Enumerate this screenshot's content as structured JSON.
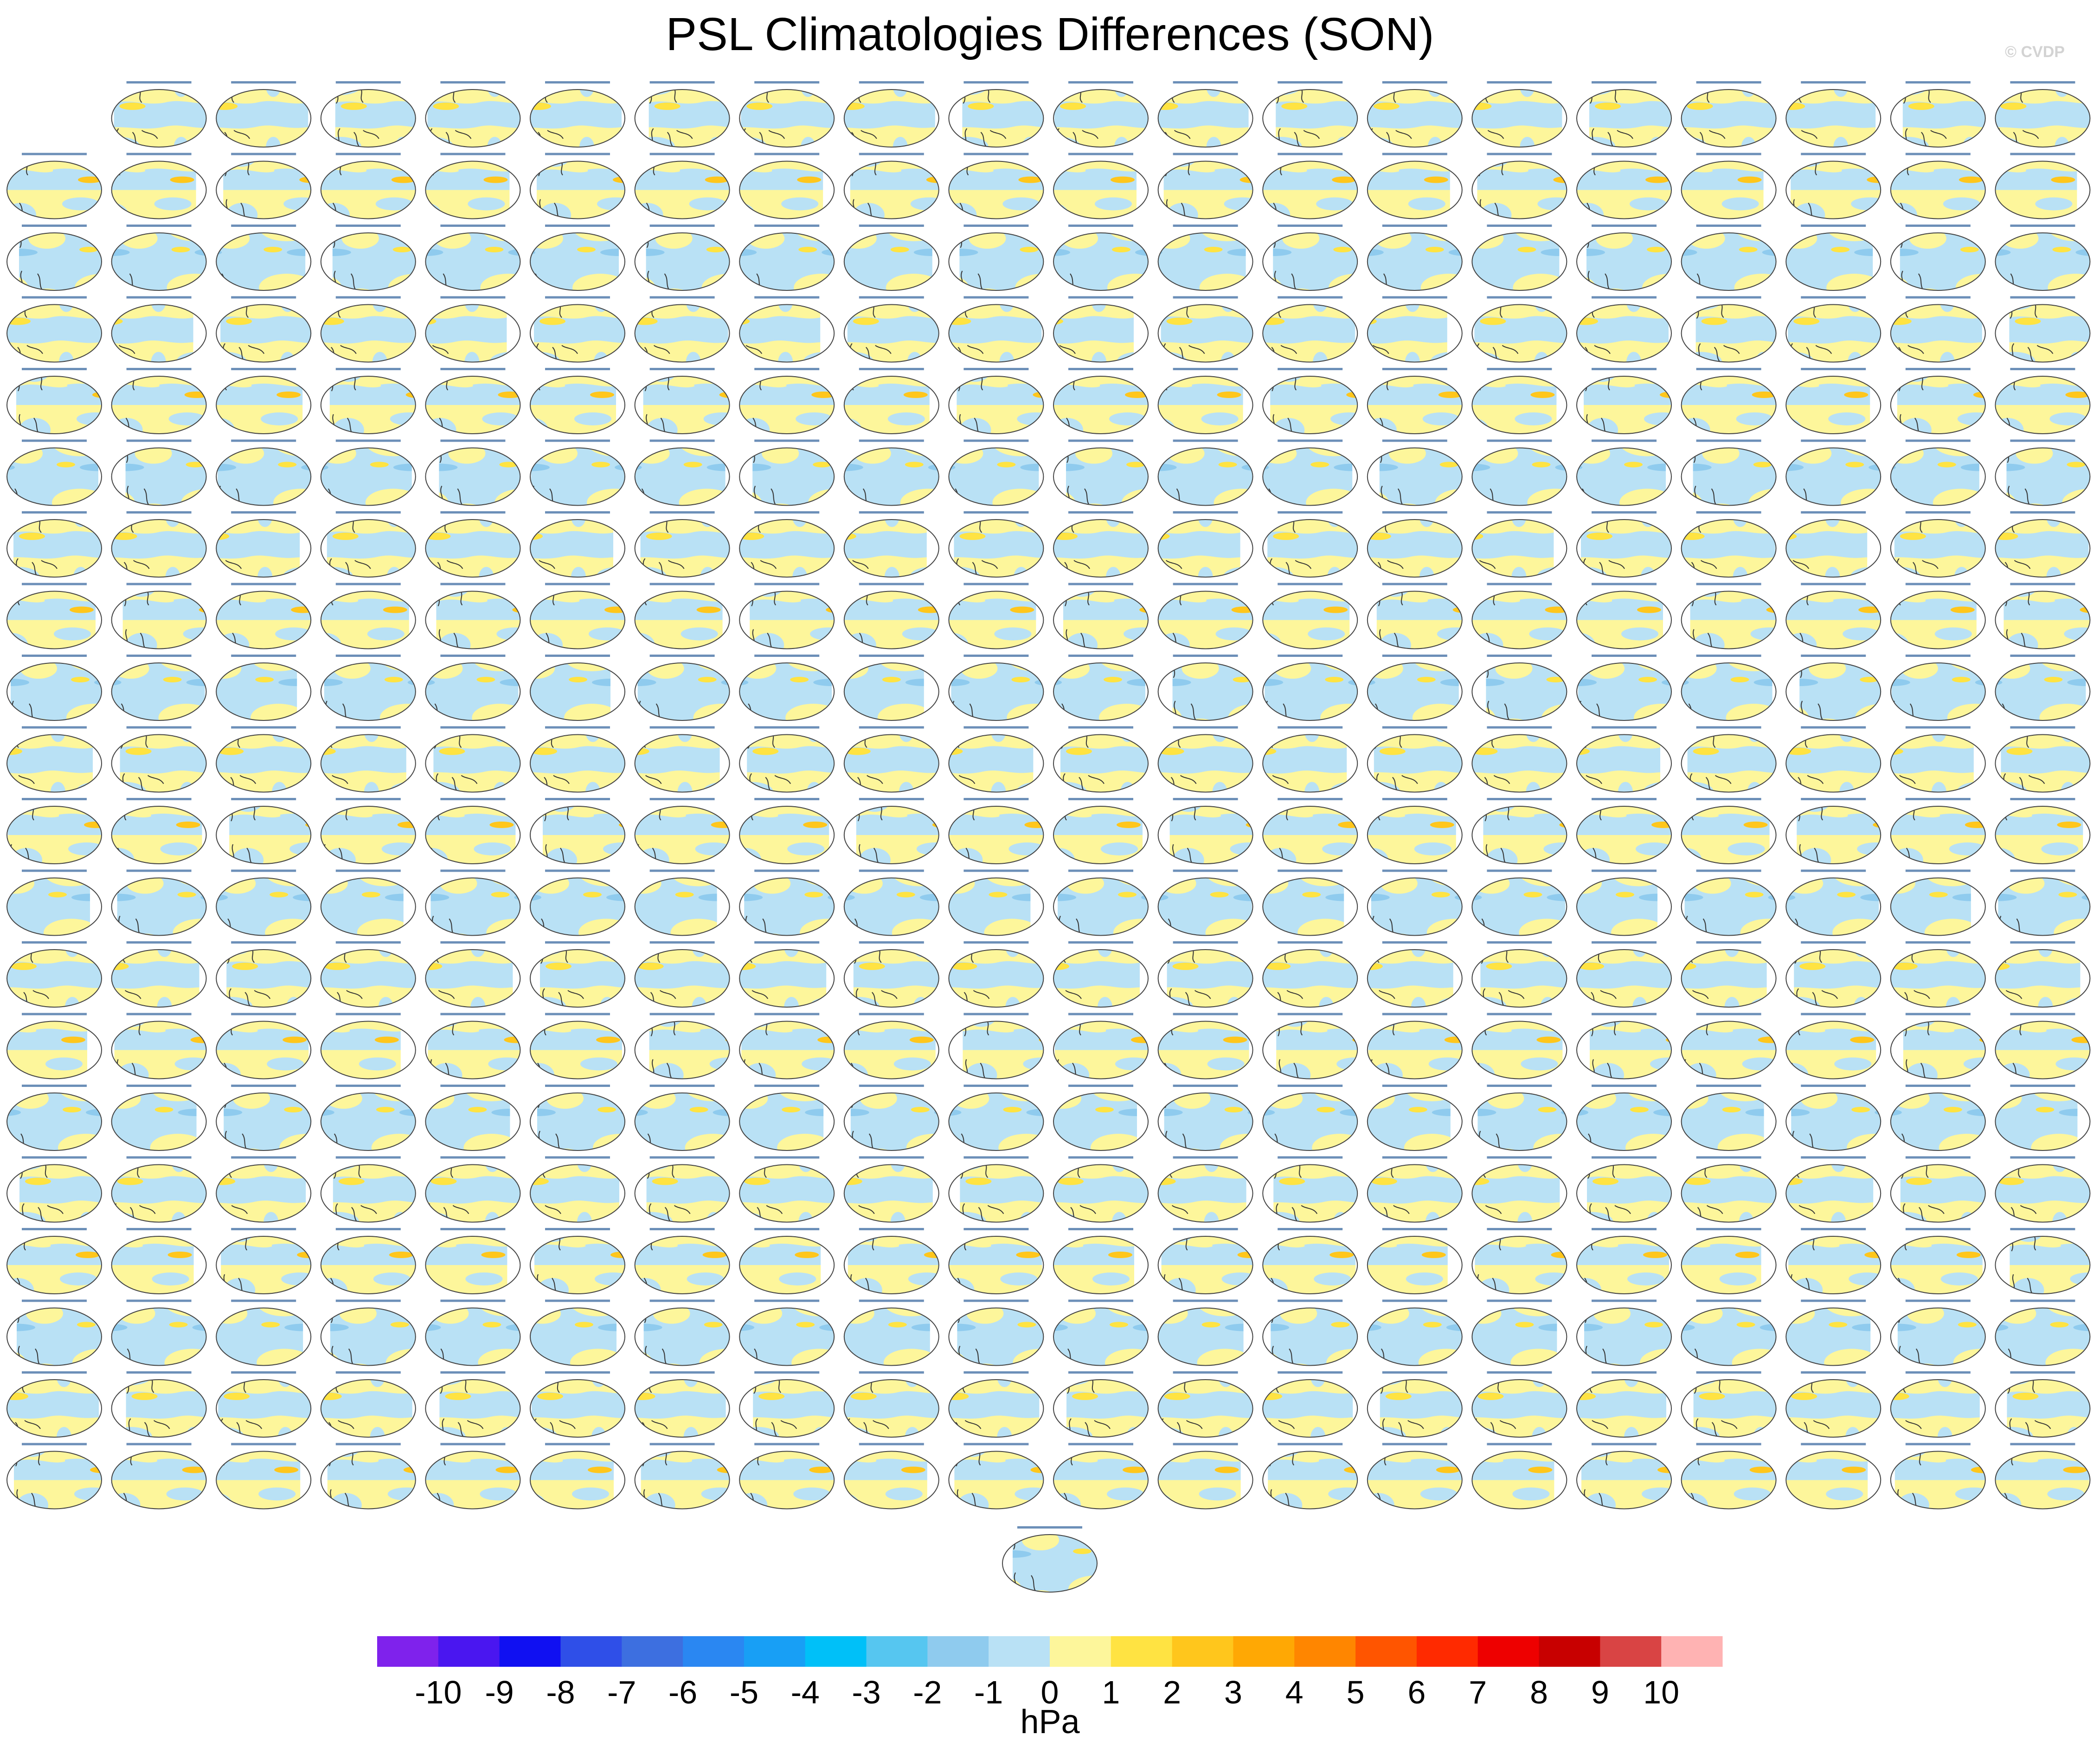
{
  "title": "PSL Climatologies Differences (SON)",
  "credit": "© CVDP",
  "chart_data": {
    "type": "heatmap",
    "title": "PSL Climatologies Differences (SON)",
    "panel_layout": {
      "rows": 21,
      "columns": 20,
      "first_row_panels": 19,
      "rows_2_to_20_panels": 20,
      "last_row_panels": 1,
      "total_panels": 400
    },
    "panel_title_ensembles": [
      "CLENS-simple-by4",
      "CLENS-simple-by4-bigens"
    ],
    "panel_style": "Robinson global map, coastlines, filled PSL difference contours",
    "colorbar": {
      "units": "hPa",
      "ticks": [
        -10,
        -9,
        -8,
        -7,
        -6,
        -5,
        -4,
        -3,
        -2,
        -1,
        0,
        1,
        2,
        3,
        4,
        5,
        6,
        7,
        8,
        9,
        10
      ],
      "colors": [
        "#7f22ec",
        "#4a16f0",
        "#1010f2",
        "#2f4fe8",
        "#3d6fe0",
        "#2a87f2",
        "#189ff5",
        "#00c0f8",
        "#56c6f0",
        "#8fcbee",
        "#b9e1f5",
        "#fdf69b",
        "#ffe342",
        "#ffc61c",
        "#ffa804",
        "#ff8600",
        "#ff5500",
        "#ff2a00",
        "#ee0000",
        "#c80000",
        "#d94444",
        "#ffb3b3"
      ]
    }
  }
}
